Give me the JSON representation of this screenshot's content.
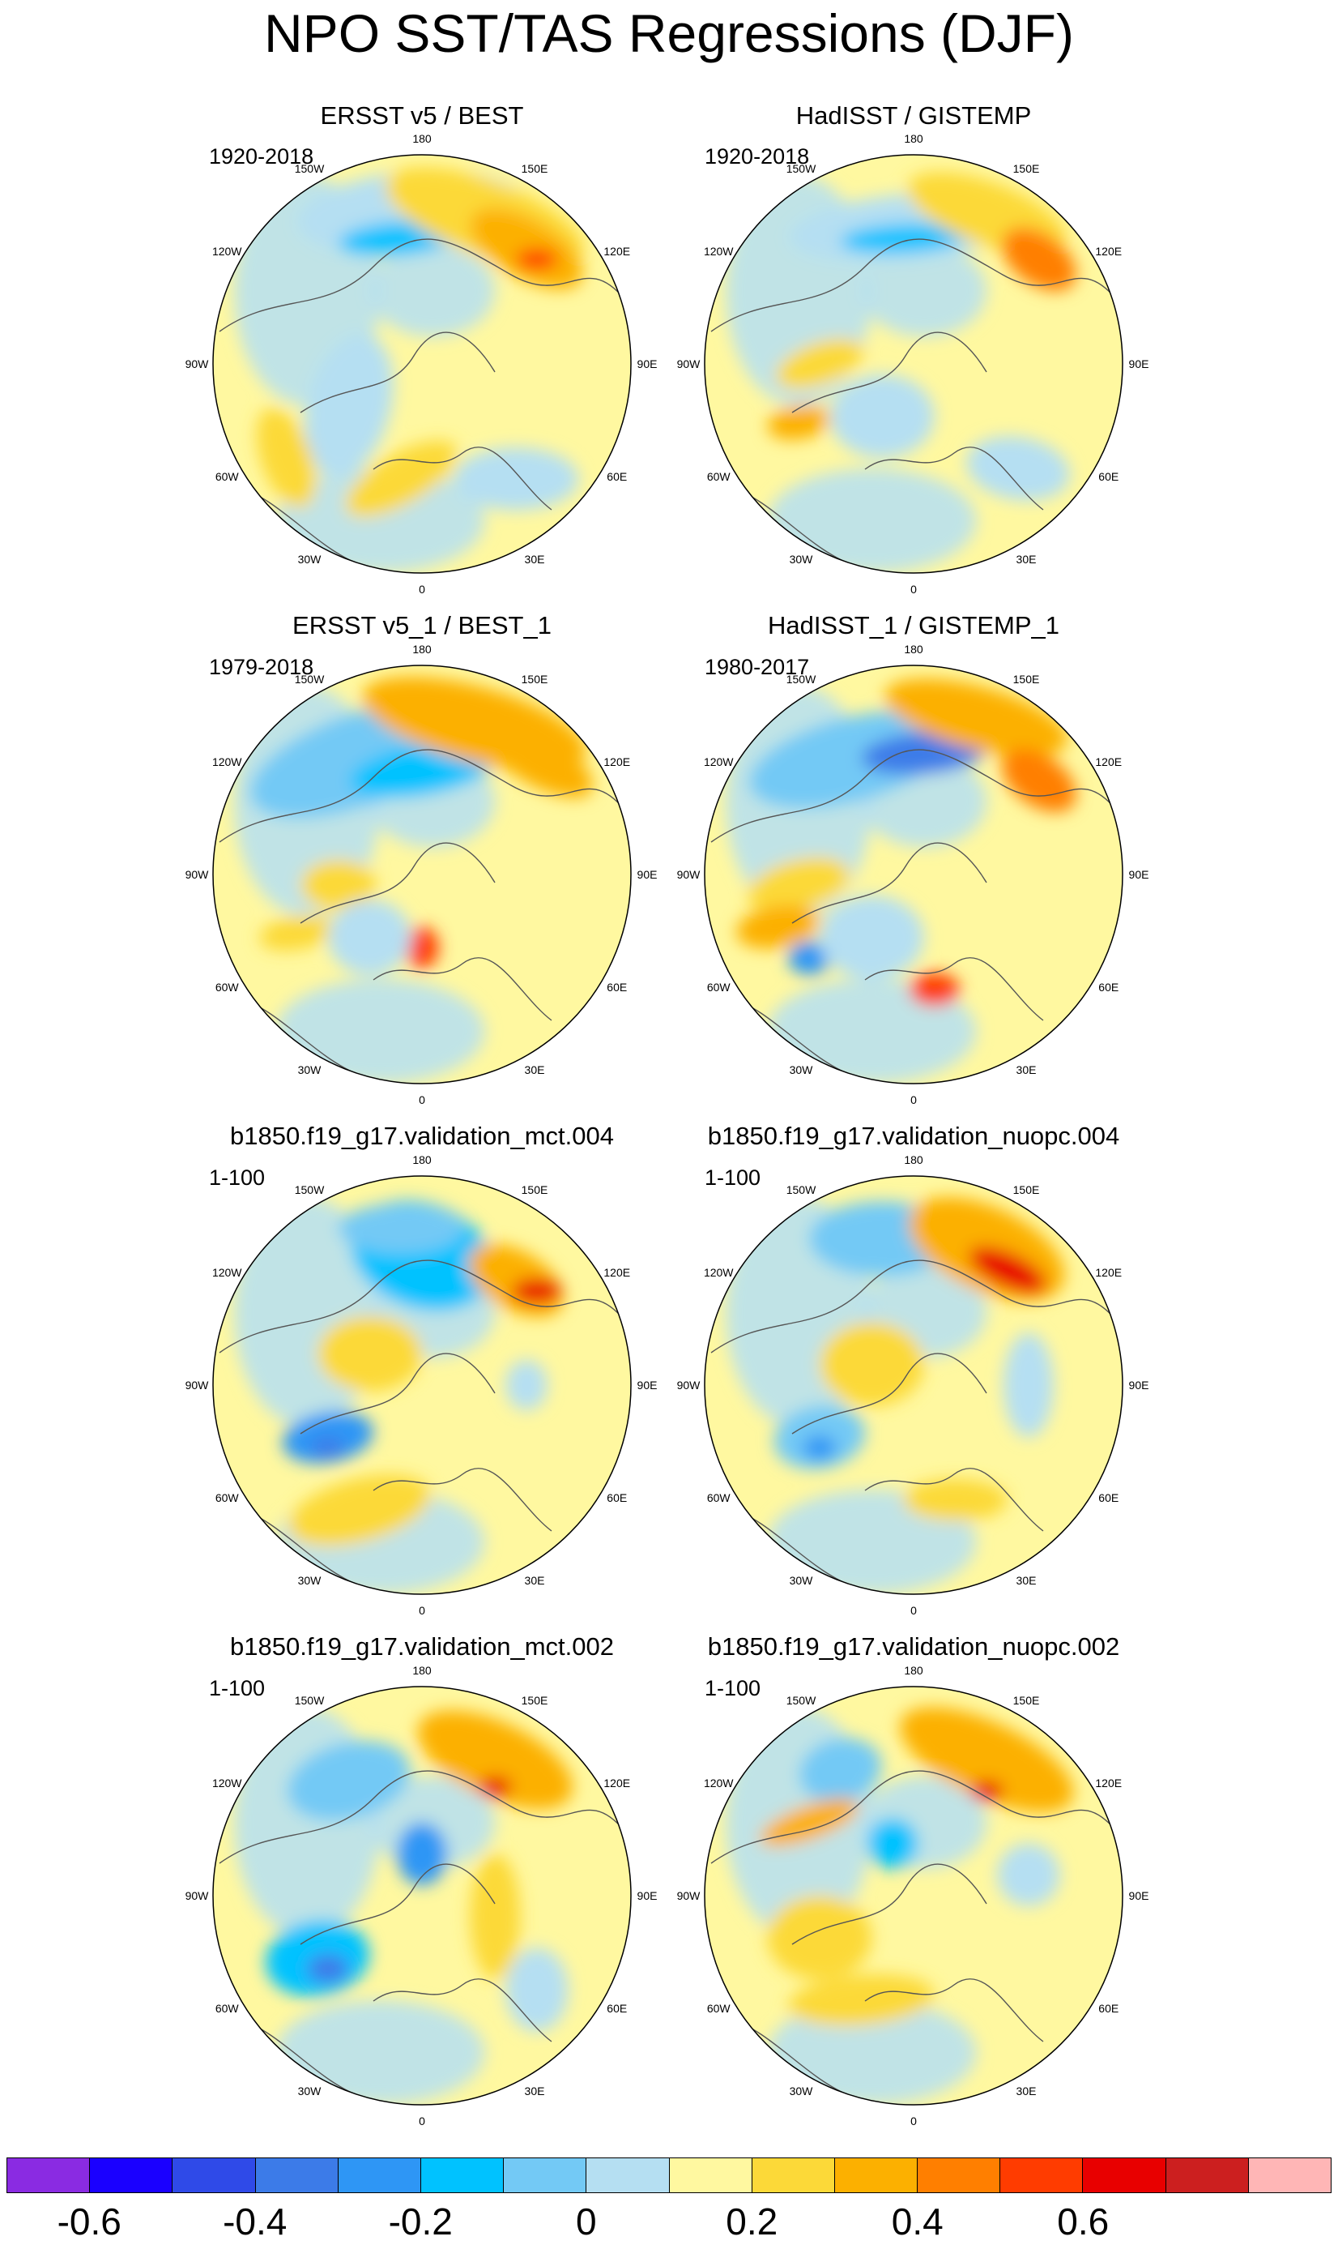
{
  "title": "NPO SST/TAS Regressions (DJF)",
  "lon_labels": [
    "180",
    "150E",
    "120E",
    "90E",
    "60E",
    "30E",
    "0",
    "30W",
    "60W",
    "90W",
    "120W",
    "150W"
  ],
  "panels": [
    {
      "title": "ERSST v5 / BEST",
      "period": "1920-2018"
    },
    {
      "title": "HadISST / GISTEMP",
      "period": "1920-2018"
    },
    {
      "title": "ERSST v5_1 / BEST_1",
      "period": "1979-2018"
    },
    {
      "title": "HadISST_1 / GISTEMP_1",
      "period": "1980-2017"
    },
    {
      "title": "b1850.f19_g17.validation_mct.004",
      "period": "1-100"
    },
    {
      "title": "b1850.f19_g17.validation_nuopc.004",
      "period": "1-100"
    },
    {
      "title": "b1850.f19_g17.validation_mct.002",
      "period": "1-100"
    },
    {
      "title": "b1850.f19_g17.validation_nuopc.002",
      "period": "1-100"
    }
  ],
  "colorbar": {
    "colors": [
      "#8a2be2",
      "#1a00ff",
      "#2f4ae8",
      "#3c7be8",
      "#2e96f5",
      "#00c2ff",
      "#73c9f5",
      "#b5dff2",
      "#fff8a0",
      "#fcd938",
      "#fcb000",
      "#ff7f00",
      "#ff3c00",
      "#e80000",
      "#cc1f1f",
      "#ffb6b6"
    ],
    "labels": [
      "-0.6",
      "-0.4",
      "-0.2",
      "0",
      "0.2",
      "0.4",
      "0.6"
    ]
  },
  "colors": {
    "land_outline": "#555555",
    "missing": "#ffffff",
    "frame": "#000000"
  }
}
